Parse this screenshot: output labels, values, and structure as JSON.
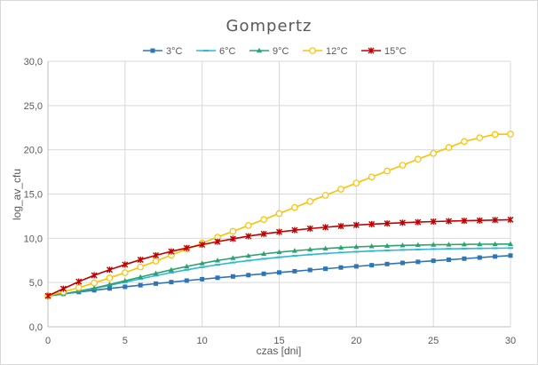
{
  "chart_data": {
    "type": "line",
    "title": "Gompertz",
    "xlabel": "czas [dni]",
    "ylabel": "log_av_cfu",
    "xlim": [
      0,
      30
    ],
    "ylim": [
      0,
      30
    ],
    "xticks": [
      "0",
      "5",
      "10",
      "15",
      "20",
      "25",
      "30"
    ],
    "yticks": [
      "0,0",
      "5,0",
      "10,0",
      "15,0",
      "20,0",
      "25,0",
      "30,0"
    ],
    "grid": true,
    "legend_position": "top",
    "x": [
      0,
      1,
      2,
      3,
      4,
      5,
      6,
      7,
      8,
      9,
      10,
      11,
      12,
      13,
      14,
      15,
      16,
      17,
      18,
      19,
      20,
      21,
      22,
      23,
      24,
      25,
      26,
      27,
      28,
      29,
      30
    ],
    "series": [
      {
        "name": "3°C",
        "color": "#2e75b6",
        "marker": "square",
        "values": [
          3.5,
          3.72,
          3.93,
          4.13,
          4.33,
          4.52,
          4.7,
          4.88,
          5.05,
          5.22,
          5.38,
          5.54,
          5.69,
          5.84,
          5.99,
          6.14,
          6.28,
          6.42,
          6.56,
          6.7,
          6.83,
          6.96,
          7.09,
          7.22,
          7.34,
          7.46,
          7.58,
          7.7,
          7.82,
          7.94,
          8.05
        ]
      },
      {
        "name": "6°C",
        "color": "#2eb8d4",
        "marker": "dash",
        "values": [
          3.5,
          3.7,
          3.98,
          4.32,
          4.68,
          5.05,
          5.42,
          5.78,
          6.12,
          6.44,
          6.74,
          7.01,
          7.26,
          7.48,
          7.68,
          7.86,
          8.02,
          8.16,
          8.28,
          8.39,
          8.48,
          8.56,
          8.63,
          8.69,
          8.74,
          8.78,
          8.81,
          8.84,
          8.86,
          8.88,
          8.9
        ]
      },
      {
        "name": "9°C",
        "color": "#2ca36f",
        "marker": "triangle",
        "values": [
          3.5,
          3.72,
          4.02,
          4.38,
          4.78,
          5.2,
          5.62,
          6.04,
          6.44,
          6.82,
          7.17,
          7.49,
          7.77,
          8.02,
          8.24,
          8.43,
          8.59,
          8.73,
          8.85,
          8.95,
          9.03,
          9.1,
          9.15,
          9.2,
          9.24,
          9.27,
          9.29,
          9.31,
          9.33,
          9.34,
          9.35
        ]
      },
      {
        "name": "12°C",
        "color": "#ffc000",
        "marker": "circle",
        "values": [
          3.5,
          3.95,
          4.43,
          4.96,
          5.52,
          6.12,
          6.76,
          7.42,
          8.1,
          8.78,
          9.46,
          10.13,
          10.79,
          11.45,
          12.12,
          12.8,
          13.48,
          14.17,
          14.86,
          15.55,
          16.24,
          16.93,
          17.6,
          18.26,
          18.94,
          19.6,
          20.26,
          20.94,
          21.36,
          21.74,
          21.78
        ]
      },
      {
        "name": "15°C",
        "color": "#c00000",
        "marker": "star",
        "values": [
          3.5,
          4.3,
          5.1,
          5.82,
          6.45,
          7.03,
          7.58,
          8.08,
          8.52,
          8.9,
          9.28,
          9.62,
          9.94,
          10.24,
          10.5,
          10.72,
          10.92,
          11.1,
          11.25,
          11.38,
          11.5,
          11.6,
          11.68,
          11.76,
          11.83,
          11.89,
          11.94,
          11.98,
          12.02,
          12.06,
          12.1
        ]
      }
    ]
  }
}
